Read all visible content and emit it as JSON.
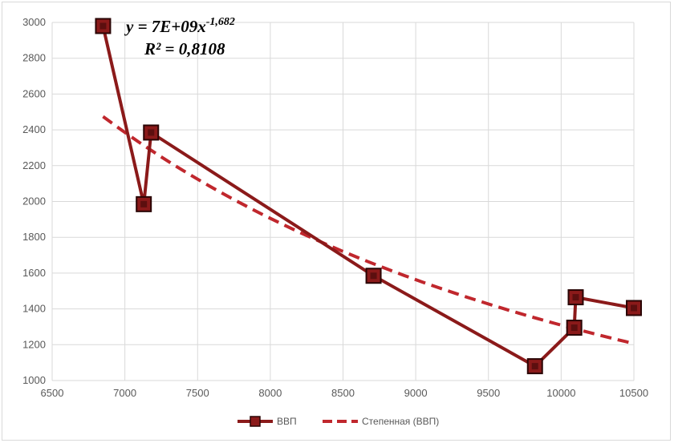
{
  "chart_data": {
    "type": "scatter",
    "title": "",
    "xlabel": "",
    "ylabel": "",
    "xlim": [
      6500,
      10500
    ],
    "ylim": [
      1000,
      3000
    ],
    "x_ticks": [
      6500,
      7000,
      7500,
      8000,
      8500,
      9000,
      9500,
      10000,
      10500
    ],
    "y_ticks": [
      1000,
      1200,
      1400,
      1600,
      1800,
      2000,
      2200,
      2400,
      2600,
      2800,
      3000
    ],
    "grid": true,
    "legend_position": "bottom",
    "series": [
      {
        "name": "ВВП",
        "color": "#8b1a1a",
        "marker": "square",
        "line": "solid",
        "points": [
          {
            "x": 6850,
            "y": 2980
          },
          {
            "x": 7130,
            "y": 1985
          },
          {
            "x": 7180,
            "y": 2385
          },
          {
            "x": 8710,
            "y": 1585
          },
          {
            "x": 9820,
            "y": 1080
          },
          {
            "x": 10090,
            "y": 1295
          },
          {
            "x": 10100,
            "y": 1465
          },
          {
            "x": 10500,
            "y": 1405
          }
        ]
      }
    ],
    "trendline": {
      "name": "Степенная (ВВП)",
      "type": "power",
      "color": "#c0272d",
      "line": "dashed",
      "coefficient": 7000000000.0,
      "exponent": -1.682,
      "x_range": [
        6850,
        10500
      ]
    },
    "annotation": {
      "equation_prefix": "y = 7E+09x",
      "equation_exponent": "-1,682",
      "r_squared": "R² = 0,8108"
    }
  }
}
